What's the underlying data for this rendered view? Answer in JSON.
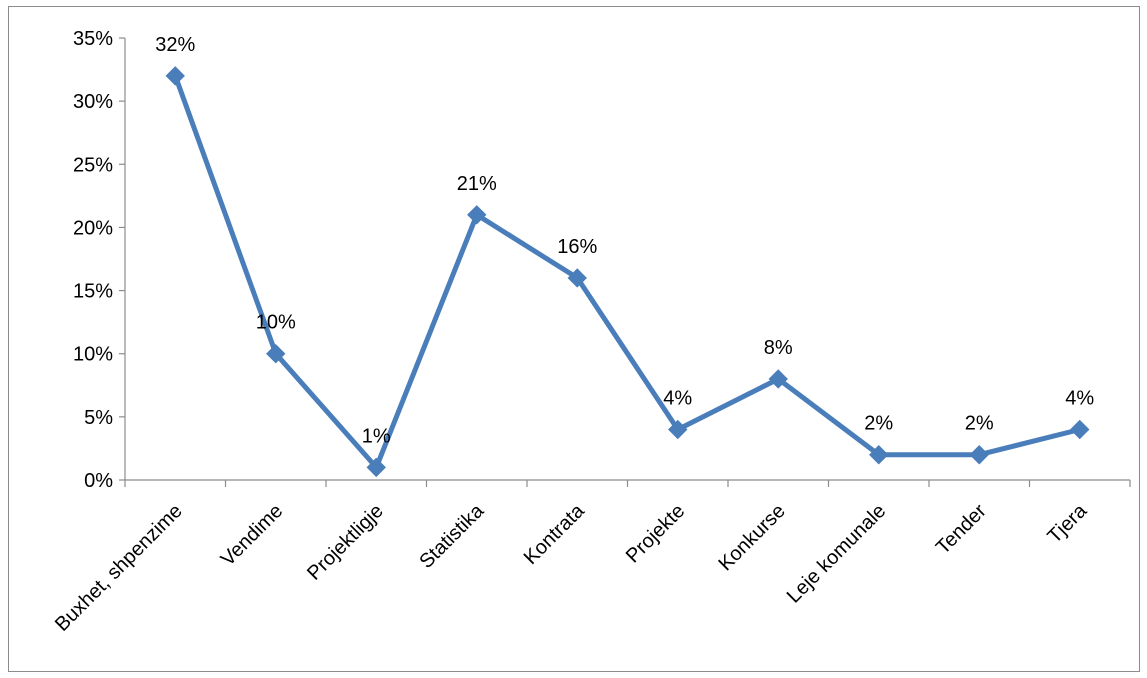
{
  "chart_data": {
    "type": "line",
    "categories": [
      "Buxhet, shpenzime",
      "Vendime",
      "Projektligje",
      "Statistika",
      "Kontrata",
      "Projekte",
      "Konkurse",
      "Leje komunale",
      "Tender",
      "Tjera"
    ],
    "series": [
      {
        "values": [
          32,
          10,
          1,
          21,
          16,
          4,
          8,
          2,
          2,
          4
        ]
      }
    ],
    "data_labels": [
      "32%",
      "10%",
      "1%",
      "21%",
      "16%",
      "4%",
      "8%",
      "2%",
      "2%",
      "4%"
    ],
    "yticks": [
      "0%",
      "5%",
      "10%",
      "15%",
      "20%",
      "25%",
      "30%",
      "35%"
    ],
    "ylim": [
      0,
      35
    ],
    "grid": false,
    "legend": "none",
    "marker": "diamond",
    "color": "#4a7ebb"
  }
}
